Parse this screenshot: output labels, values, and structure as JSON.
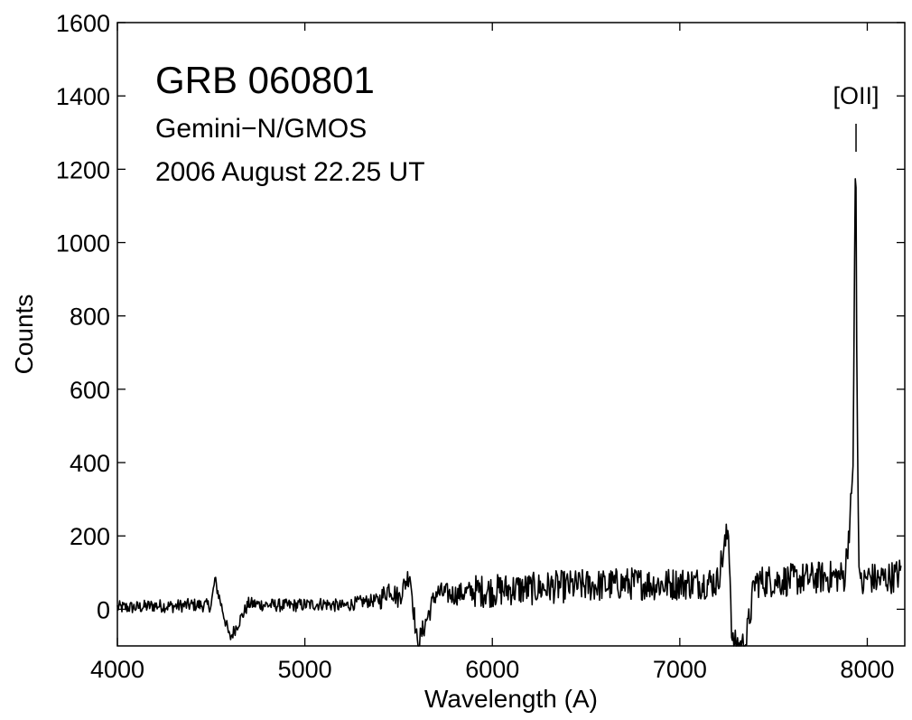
{
  "chart_data": {
    "type": "line",
    "xlabel": "Wavelength  (A)",
    "ylabel": "Counts",
    "xlim": [
      4000,
      8200
    ],
    "ylim": [
      -100,
      1600
    ],
    "xticks": [
      4000,
      5000,
      6000,
      7000,
      8000
    ],
    "yticks": [
      0,
      200,
      400,
      600,
      800,
      1000,
      1200,
      1400,
      1600
    ],
    "xtick_labels": [
      "4000",
      "5000",
      "6000",
      "7000",
      "8000"
    ],
    "ytick_labels": [
      "0",
      "200",
      "400",
      "600",
      "800",
      "1000",
      "1200",
      "1400",
      "1600"
    ],
    "grid": false,
    "annotations": {
      "title": "GRB 060801",
      "instrument": "Gemini−N/GMOS",
      "date": "2006 August 22.25 UT"
    },
    "line_marker": {
      "label": "[OII]",
      "x": 7940
    },
    "series": [
      {
        "color": "#000000",
        "x": [
          4000,
          4100,
          4200,
          4300,
          4400,
          4500,
          4520,
          4600,
          4700,
          4800,
          4900,
          5000,
          5100,
          5200,
          5300,
          5400,
          5450,
          5500,
          5560,
          5600,
          5700,
          5800,
          5900,
          6000,
          6100,
          6200,
          6300,
          6400,
          6500,
          6600,
          6700,
          6800,
          6900,
          7000,
          7100,
          7200,
          7260,
          7280,
          7350,
          7400,
          7500,
          7600,
          7700,
          7800,
          7880,
          7910,
          7925,
          7935,
          7940,
          7945,
          7955,
          7970,
          8000,
          8050,
          8100,
          8150,
          8180
        ],
        "y": [
          5,
          5,
          10,
          8,
          12,
          10,
          80,
          -80,
          15,
          12,
          10,
          12,
          15,
          8,
          20,
          25,
          60,
          30,
          100,
          -100,
          45,
          40,
          50,
          50,
          55,
          55,
          60,
          62,
          65,
          65,
          70,
          70,
          68,
          70,
          72,
          75,
          220,
          -100,
          -100,
          75,
          78,
          80,
          85,
          88,
          90,
          260,
          400,
          1180,
          1150,
          600,
          120,
          60,
          90,
          80,
          85,
          90,
          100
        ]
      }
    ]
  }
}
